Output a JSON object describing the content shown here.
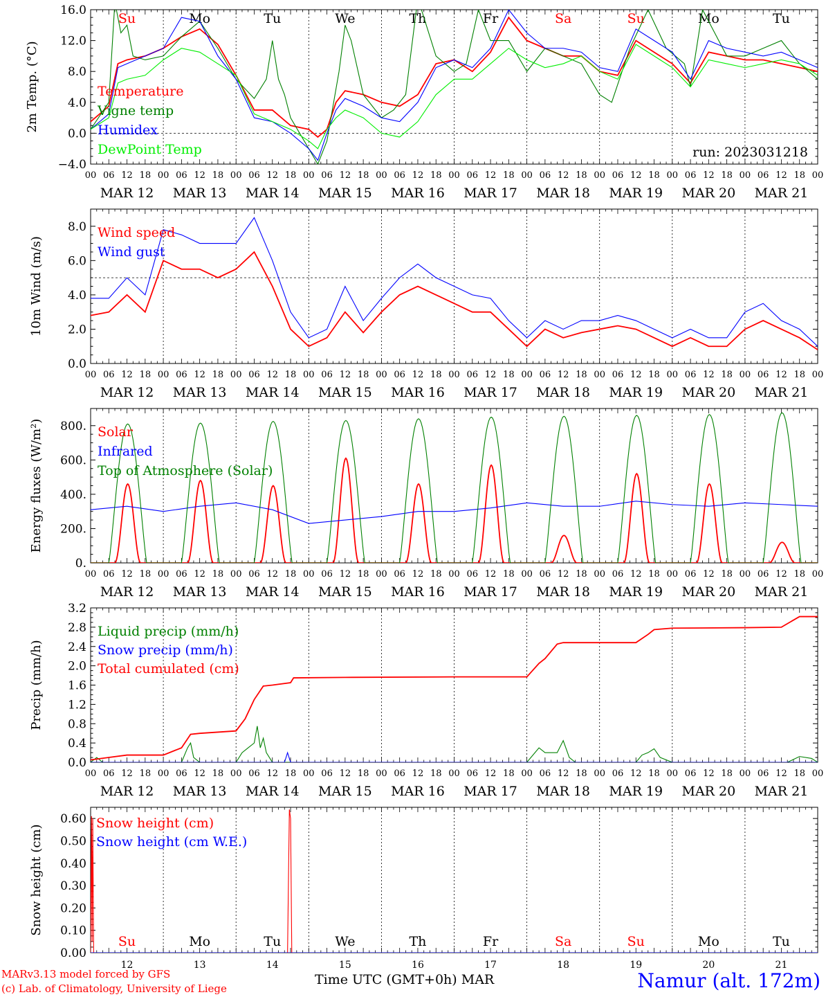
{
  "run_label": "run: 2023031218",
  "days": [
    "MAR 12",
    "MAR 13",
    "MAR 14",
    "MAR 15",
    "MAR 16",
    "MAR 17",
    "MAR 18",
    "MAR 19",
    "MAR 20",
    "MAR 21"
  ],
  "day_numbers": [
    "12",
    "13",
    "14",
    "15",
    "16",
    "17",
    "18",
    "19",
    "20",
    "21"
  ],
  "weekdays": [
    "Su",
    "Mo",
    "Tu",
    "We",
    "Th",
    "Fr",
    "Sa",
    "Su",
    "Mo",
    "Tu"
  ],
  "weekend_flags": [
    true,
    false,
    false,
    false,
    false,
    false,
    true,
    true,
    false,
    false
  ],
  "hour_ticks": [
    "00",
    "06",
    "12",
    "18"
  ],
  "last_tick": "00",
  "footer": {
    "credit_line1": "MARv3.13 model forced by GFS",
    "credit_line2": "(c) Lab. of Climatology, University of Liege",
    "x_title": "Time UTC (GMT+0h)",
    "month": "MAR",
    "station": "Namur (alt. 172m)"
  },
  "colors": {
    "red": "#ff0000",
    "green": "#008000",
    "blue": "#0000ff",
    "lightgreen": "#00ee00",
    "weekend": "#ff0000"
  },
  "chart_data": [
    {
      "type": "line",
      "ylabel": "2m Temp. (°C)",
      "ylim": [
        -4.0,
        16.0
      ],
      "yticks": [
        -4.0,
        0.0,
        4.0,
        8.0,
        12.0,
        16.0
      ],
      "ytick_labels": [
        "−4.0",
        "0.0",
        "4.0",
        "8.0",
        "12.0",
        "16.0"
      ],
      "ref_line": 0.0,
      "x_unit": "hours since 12 Mar 00 UTC",
      "x_range": [
        0,
        240
      ],
      "series": [
        {
          "name": "Temperature",
          "color": "red",
          "x": [
            0,
            6,
            9,
            12,
            18,
            24,
            30,
            36,
            42,
            48,
            54,
            60,
            66,
            72,
            75,
            78,
            81,
            84,
            90,
            96,
            102,
            108,
            114,
            120,
            126,
            132,
            138,
            144,
            150,
            156,
            162,
            168,
            174,
            180,
            186,
            192,
            198,
            204,
            210,
            216,
            222,
            228,
            234,
            240
          ],
          "y": [
            1.5,
            3.5,
            9.0,
            9.5,
            10.0,
            11.0,
            12.5,
            13.5,
            11.5,
            7.5,
            3.0,
            3.0,
            1.0,
            0.5,
            -0.5,
            0.5,
            4.0,
            5.5,
            5.0,
            4.0,
            3.5,
            5.0,
            9.0,
            9.5,
            8.0,
            10.5,
            15.0,
            12.0,
            11.0,
            10.0,
            10.0,
            8.0,
            7.5,
            12.0,
            10.5,
            9.0,
            6.5,
            10.5,
            10.0,
            9.5,
            9.5,
            9.0,
            8.5,
            8.0
          ]
        },
        {
          "name": "Vigne temp",
          "color": "green",
          "x": [
            0,
            6,
            8,
            10,
            12,
            14,
            18,
            24,
            30,
            36,
            42,
            48,
            54,
            58,
            60,
            62,
            64,
            66,
            72,
            75,
            78,
            82,
            84,
            86,
            90,
            96,
            100,
            104,
            108,
            114,
            120,
            124,
            128,
            132,
            138,
            144,
            150,
            156,
            162,
            168,
            172,
            178,
            184,
            190,
            196,
            198,
            202,
            206,
            210,
            216,
            222,
            228,
            234,
            240
          ],
          "y": [
            0.5,
            4.0,
            17.0,
            13.0,
            14.0,
            10.0,
            9.5,
            10.0,
            12.5,
            14.5,
            11.0,
            7.0,
            4.5,
            7.0,
            12.0,
            7.0,
            5.0,
            2.0,
            -2.0,
            -4.0,
            -1.0,
            8.0,
            14.0,
            12.0,
            5.0,
            2.0,
            3.0,
            5.0,
            17.5,
            10.0,
            8.0,
            9.0,
            16.0,
            12.0,
            12.0,
            8.0,
            11.0,
            10.0,
            9.0,
            5.0,
            4.0,
            11.0,
            16.0,
            11.0,
            9.0,
            6.0,
            16.0,
            13.0,
            10.0,
            10.0,
            11.0,
            12.0,
            9.0,
            7.0
          ]
        },
        {
          "name": "Humidex",
          "color": "blue",
          "x": [
            0,
            6,
            9,
            12,
            18,
            24,
            30,
            36,
            42,
            48,
            54,
            60,
            66,
            72,
            75,
            78,
            81,
            84,
            90,
            96,
            102,
            108,
            114,
            120,
            126,
            132,
            138,
            144,
            150,
            156,
            162,
            168,
            174,
            180,
            186,
            192,
            198,
            204,
            210,
            216,
            222,
            228,
            234,
            240
          ],
          "y": [
            0.5,
            2.5,
            8.5,
            9.0,
            10.0,
            11.0,
            15.0,
            14.5,
            10.0,
            7.0,
            2.0,
            1.5,
            0.0,
            -2.0,
            -3.5,
            0.0,
            3.0,
            4.5,
            3.5,
            2.0,
            1.5,
            4.0,
            8.5,
            9.5,
            8.5,
            11.0,
            16.0,
            13.0,
            11.0,
            11.0,
            10.5,
            8.5,
            8.0,
            13.5,
            12.0,
            10.5,
            7.0,
            12.0,
            11.0,
            10.5,
            10.0,
            10.5,
            9.5,
            8.5
          ]
        },
        {
          "name": "DewPoint Temp",
          "color": "lightgreen",
          "x": [
            0,
            6,
            9,
            12,
            18,
            24,
            30,
            36,
            42,
            48,
            54,
            60,
            66,
            72,
            75,
            78,
            81,
            84,
            90,
            96,
            102,
            108,
            114,
            120,
            126,
            132,
            138,
            144,
            150,
            156,
            162,
            168,
            174,
            180,
            186,
            192,
            198,
            204,
            210,
            216,
            222,
            228,
            234,
            240
          ],
          "y": [
            0.5,
            2.0,
            6.5,
            7.0,
            7.5,
            9.5,
            11.0,
            10.5,
            9.0,
            7.5,
            2.5,
            1.5,
            0.5,
            -1.0,
            -2.0,
            0.5,
            2.0,
            3.0,
            2.0,
            0.0,
            -0.5,
            1.5,
            5.0,
            7.0,
            7.0,
            9.0,
            11.0,
            9.5,
            8.5,
            9.0,
            10.0,
            8.0,
            7.0,
            11.5,
            10.0,
            8.5,
            6.0,
            9.5,
            9.0,
            8.5,
            9.0,
            9.5,
            9.0,
            7.5
          ]
        }
      ]
    },
    {
      "type": "line",
      "ylabel": "10m Wind (m/s)",
      "ylim": [
        0.0,
        9.0
      ],
      "yticks": [
        0.0,
        2.0,
        4.0,
        6.0,
        8.0
      ],
      "ytick_labels": [
        "0.0",
        "2.0",
        "4.0",
        "6.0",
        "8.0"
      ],
      "ref_line": 5.0,
      "x_unit": "hours since 12 Mar 00 UTC",
      "x_range": [
        0,
        240
      ],
      "series": [
        {
          "name": "Wind speed",
          "color": "red",
          "x": [
            0,
            6,
            12,
            18,
            24,
            30,
            36,
            42,
            48,
            54,
            60,
            66,
            72,
            78,
            84,
            90,
            96,
            102,
            108,
            114,
            120,
            126,
            132,
            138,
            144,
            150,
            156,
            162,
            168,
            174,
            180,
            186,
            192,
            198,
            204,
            210,
            216,
            222,
            228,
            234,
            240
          ],
          "y": [
            2.8,
            3.0,
            4.0,
            3.0,
            6.0,
            5.5,
            5.5,
            5.0,
            5.5,
            6.5,
            4.5,
            2.0,
            1.0,
            1.5,
            3.0,
            1.8,
            3.0,
            4.0,
            4.5,
            4.0,
            3.5,
            3.0,
            3.0,
            2.0,
            1.0,
            2.0,
            1.5,
            1.8,
            2.0,
            2.2,
            2.0,
            1.5,
            1.0,
            1.5,
            1.0,
            1.0,
            2.0,
            2.5,
            2.0,
            1.5,
            0.8
          ]
        },
        {
          "name": "Wind gust",
          "color": "blue",
          "x": [
            0,
            6,
            12,
            18,
            24,
            30,
            36,
            42,
            48,
            54,
            60,
            66,
            72,
            78,
            84,
            90,
            96,
            102,
            108,
            114,
            120,
            126,
            132,
            138,
            144,
            150,
            156,
            162,
            168,
            174,
            180,
            186,
            192,
            198,
            204,
            210,
            216,
            222,
            228,
            234,
            240
          ],
          "y": [
            3.8,
            3.8,
            5.0,
            4.0,
            7.8,
            7.5,
            7.0,
            7.0,
            7.0,
            8.5,
            6.0,
            3.0,
            1.5,
            2.0,
            4.5,
            2.5,
            3.8,
            5.0,
            5.8,
            5.0,
            4.5,
            4.0,
            3.8,
            2.5,
            1.5,
            2.5,
            2.0,
            2.5,
            2.5,
            2.8,
            2.5,
            2.0,
            1.5,
            2.0,
            1.5,
            1.5,
            3.0,
            3.5,
            2.5,
            2.0,
            1.0
          ]
        }
      ]
    },
    {
      "type": "line",
      "ylabel": "Energy fluxes (W/m²)",
      "ylim": [
        0,
        900
      ],
      "yticks": [
        0,
        200,
        400,
        600,
        800
      ],
      "ytick_labels": [
        "0.",
        "200.",
        "400.",
        "600.",
        "800."
      ],
      "x_unit": "hours since 12 Mar 00 UTC",
      "x_range": [
        0,
        240
      ],
      "series": [
        {
          "name": "Solar",
          "color": "red",
          "daily_peak": [
            460,
            480,
            450,
            610,
            460,
            570,
            160,
            520,
            460,
            120
          ]
        },
        {
          "name": "Infrared",
          "color": "blue",
          "x": [
            0,
            12,
            24,
            36,
            48,
            60,
            72,
            84,
            96,
            108,
            120,
            132,
            144,
            156,
            168,
            180,
            192,
            204,
            216,
            228,
            240
          ],
          "y": [
            310,
            330,
            300,
            330,
            350,
            310,
            230,
            250,
            270,
            300,
            300,
            320,
            350,
            330,
            330,
            360,
            340,
            330,
            350,
            340,
            330
          ]
        },
        {
          "name": "Top of Atmosphere (Solar)",
          "color": "green",
          "daily_peak": [
            810,
            815,
            825,
            830,
            840,
            850,
            855,
            860,
            865,
            875
          ]
        }
      ]
    },
    {
      "type": "line",
      "ylabel": "Precip (mm/h)",
      "ylim": [
        0.0,
        3.2
      ],
      "yticks": [
        0.0,
        0.4,
        0.8,
        1.2,
        1.6,
        2.0,
        2.4,
        2.8,
        3.2
      ],
      "ytick_labels": [
        "0.0",
        "0.4",
        "0.8",
        "1.2",
        "1.6",
        "2.0",
        "2.4",
        "2.8",
        "3.2"
      ],
      "x_unit": "hours since 12 Mar 00 UTC",
      "x_range": [
        0,
        240
      ],
      "series": [
        {
          "name": "Liquid precip (mm/h)",
          "color": "green",
          "x": [
            0,
            2,
            4,
            30,
            32,
            33,
            34,
            36,
            48,
            50,
            52,
            54,
            55,
            56,
            57,
            58,
            60,
            144,
            148,
            150,
            154,
            156,
            158,
            160,
            180,
            182,
            184,
            186,
            188,
            190,
            192,
            230,
            234,
            238,
            240
          ],
          "y": [
            0,
            0.1,
            0,
            0,
            0.3,
            0.4,
            0.1,
            0,
            0,
            0.2,
            0.3,
            0.4,
            0.75,
            0.3,
            0.5,
            0.2,
            0,
            0,
            0.3,
            0.2,
            0.2,
            0.45,
            0.1,
            0,
            0,
            0.15,
            0.2,
            0.28,
            0.1,
            0.05,
            0,
            0,
            0.12,
            0.08,
            0
          ]
        },
        {
          "name": "Snow precip (mm/h)",
          "color": "blue",
          "x": [
            0,
            64,
            65,
            66,
            240
          ],
          "y": [
            0,
            0,
            0.2,
            0,
            0
          ]
        },
        {
          "name": "Total cumulated (cm)",
          "color": "red",
          "x": [
            0,
            6,
            12,
            24,
            30,
            33,
            36,
            48,
            51,
            54,
            57,
            60,
            66,
            67,
            84,
            120,
            144,
            148,
            150,
            154,
            156,
            168,
            180,
            184,
            186,
            192,
            216,
            228,
            234,
            240
          ],
          "y": [
            0.05,
            0.1,
            0.15,
            0.15,
            0.3,
            0.58,
            0.6,
            0.65,
            0.9,
            1.3,
            1.58,
            1.6,
            1.65,
            1.75,
            1.76,
            1.77,
            1.77,
            2.05,
            2.15,
            2.45,
            2.48,
            2.48,
            2.48,
            2.65,
            2.75,
            2.78,
            2.79,
            2.8,
            3.02,
            3.02
          ]
        }
      ]
    },
    {
      "type": "line",
      "ylabel": "Snow height (cm)",
      "ylim": [
        0.0,
        0.65
      ],
      "yticks": [
        0.0,
        0.1,
        0.2,
        0.3,
        0.4,
        0.5,
        0.6
      ],
      "ytick_labels": [
        "0.00",
        "0.10",
        "0.20",
        "0.30",
        "0.40",
        "0.50",
        "0.60"
      ],
      "x_unit": "hours since 12 Mar 00 UTC",
      "x_range": [
        0,
        240
      ],
      "series": [
        {
          "name": "Snow height (cm)",
          "color": "red",
          "x": [
            0,
            0.3,
            0.5,
            0.7,
            1,
            65,
            65.6,
            66,
            66.4,
            240
          ],
          "y": [
            0,
            0.61,
            0.05,
            0.6,
            0,
            0,
            0.64,
            0.6,
            0,
            0
          ]
        },
        {
          "name": "Snow height (cm W.E.)",
          "color": "blue",
          "x": [
            0,
            240
          ],
          "y": [
            0,
            0
          ]
        }
      ]
    }
  ]
}
